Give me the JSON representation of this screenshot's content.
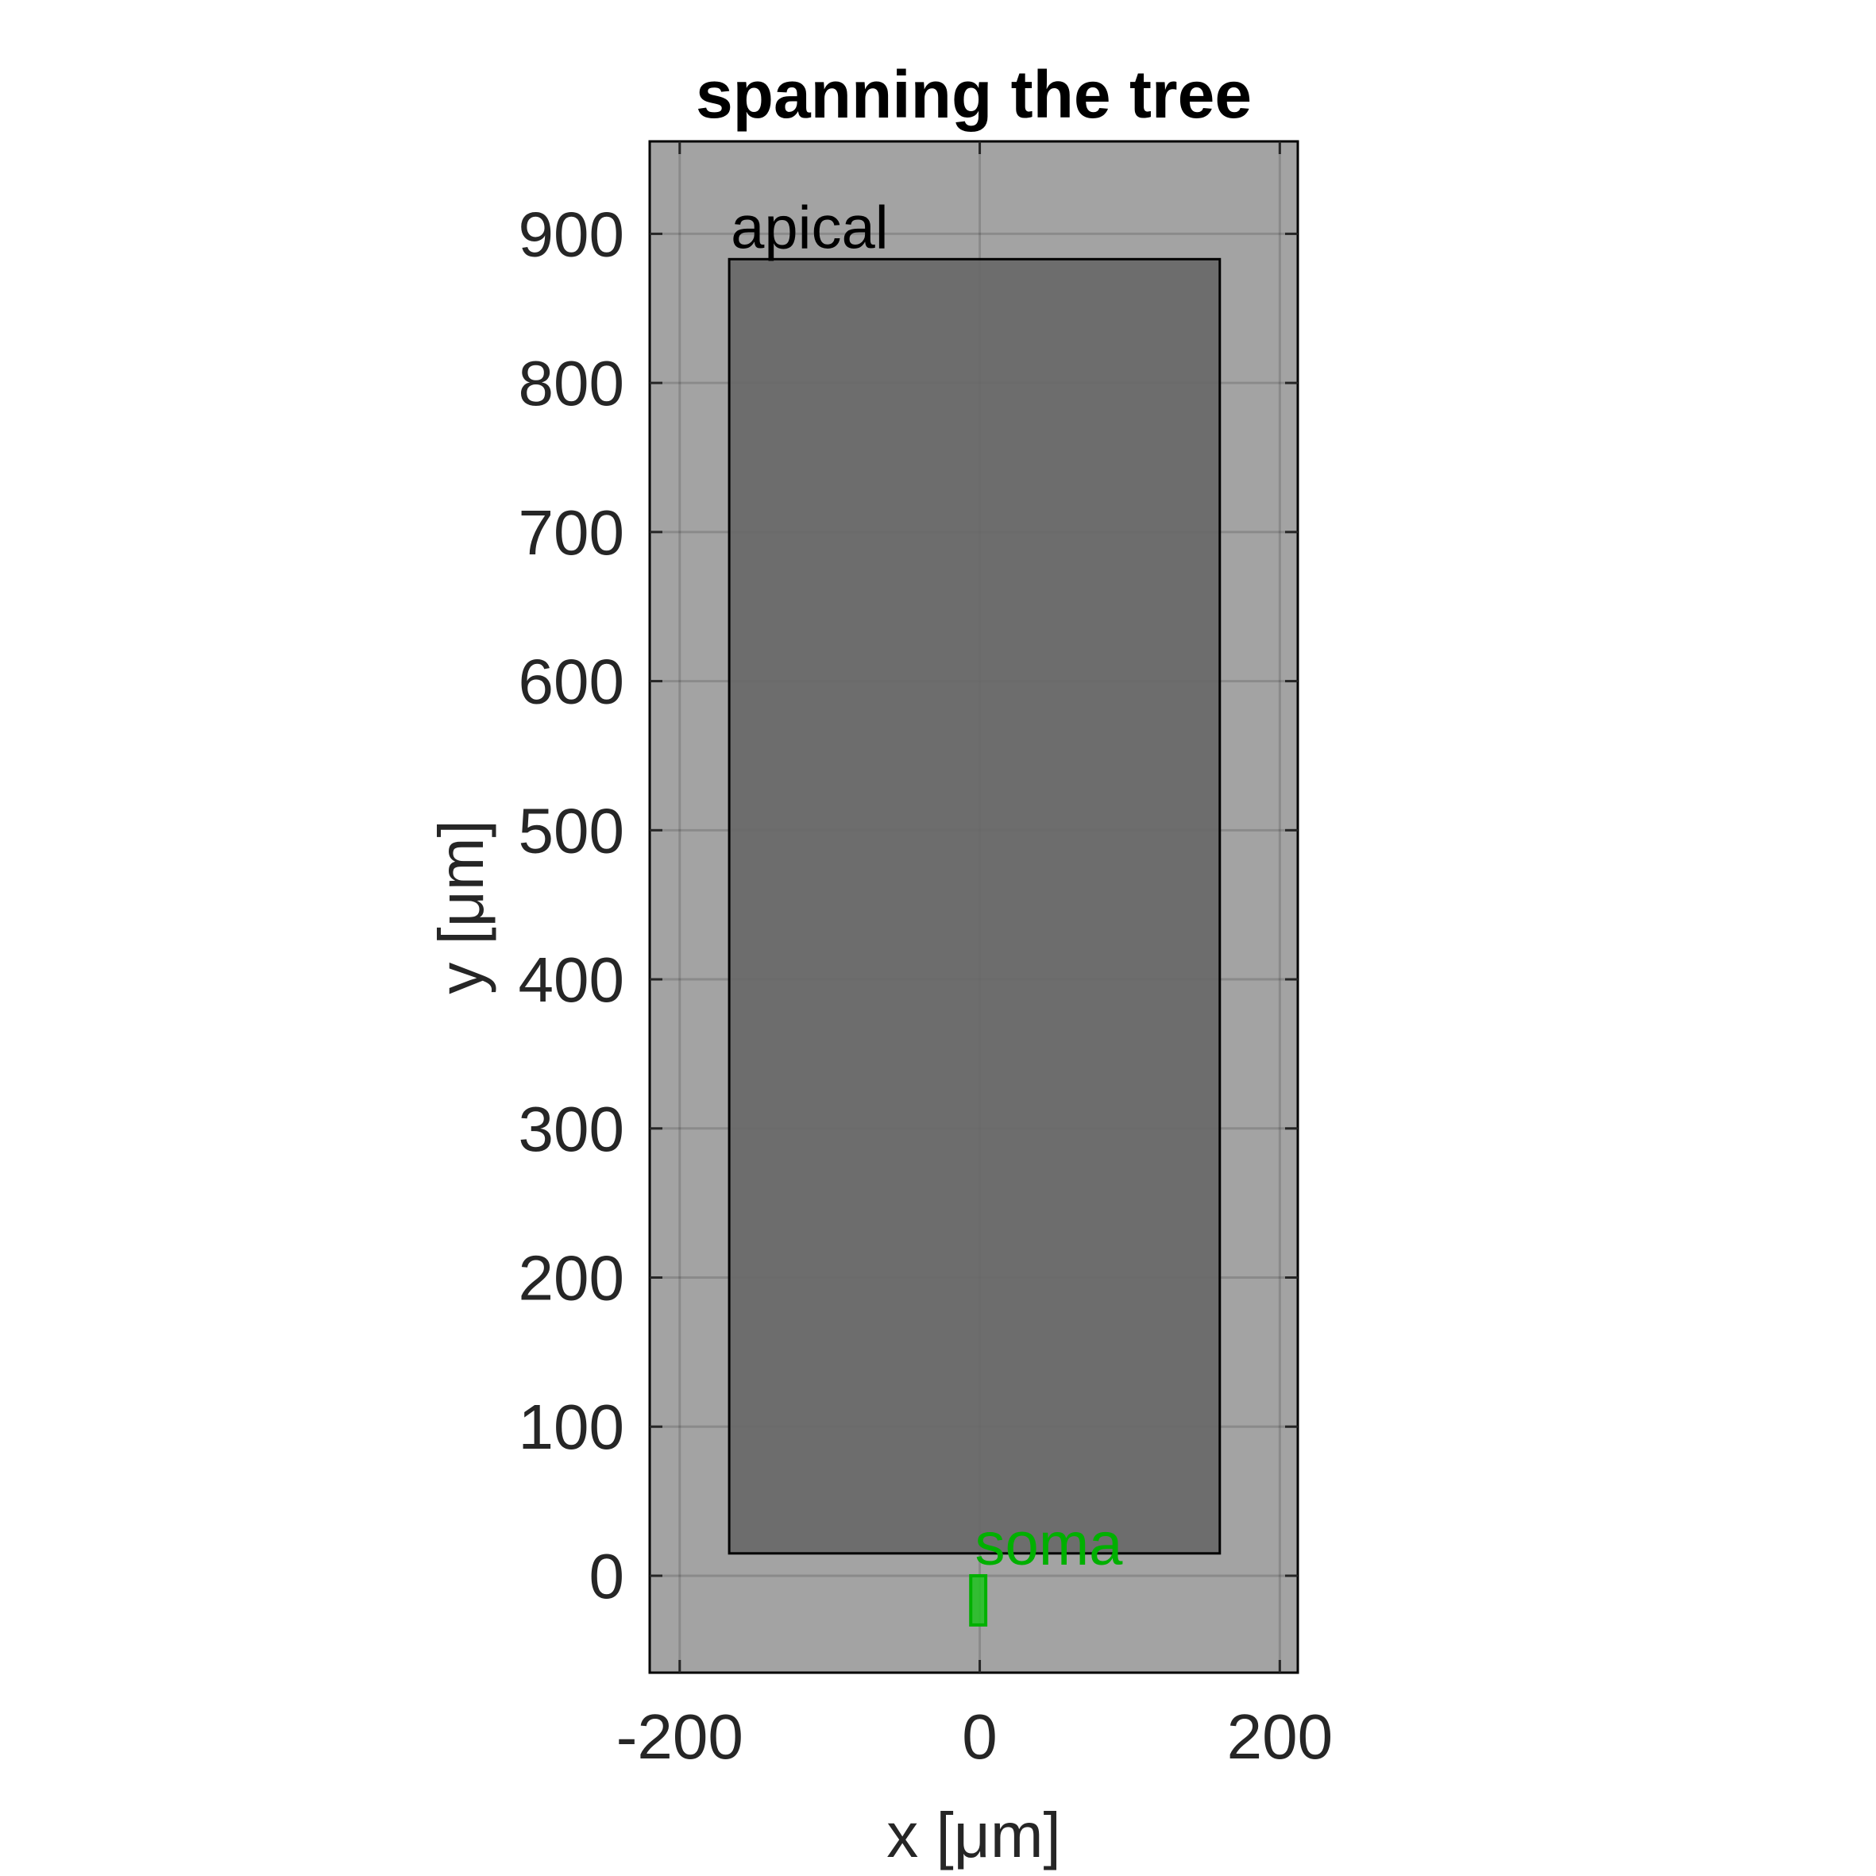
{
  "chart_data": {
    "type": "box-regions",
    "title": "spanning the tree",
    "xlabel": "x [μm]",
    "ylabel": "y [μm]",
    "xlim": [
      -220,
      212
    ],
    "ylim": [
      -65,
      962
    ],
    "xticks": [
      -200,
      0,
      200
    ],
    "yticks": [
      0,
      100,
      200,
      300,
      400,
      500,
      600,
      700,
      800,
      900
    ],
    "grid": true,
    "background_color": "#a3a3a3",
    "regions": [
      {
        "name": "apical",
        "x": [
          -167,
          160
        ],
        "y": [
          15,
          883
        ],
        "fill": "#686868",
        "stroke": "#000000",
        "label_color": "#000000"
      },
      {
        "name": "soma",
        "x": [
          -6,
          4
        ],
        "y": [
          -33,
          0
        ],
        "fill": "#1fc21f",
        "stroke": "#00b000",
        "label_color": "#00b000"
      }
    ]
  }
}
